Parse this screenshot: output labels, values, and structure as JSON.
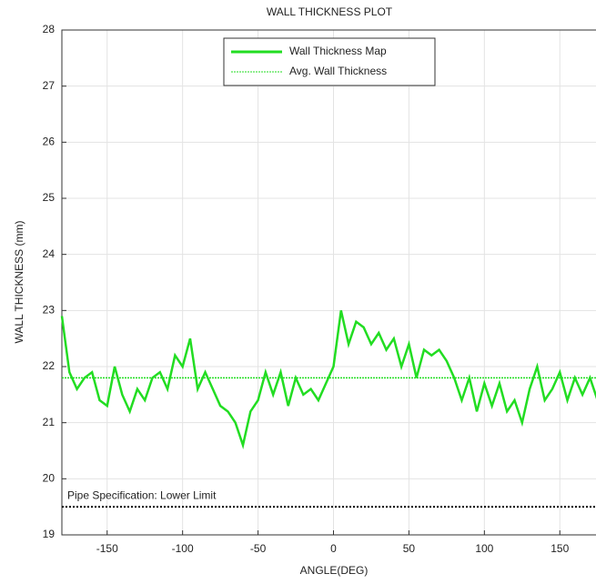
{
  "chart_data": {
    "type": "line",
    "title": "WALL THICKNESS PLOT",
    "xlabel": "ANGLE(DEG)",
    "ylabel": "WALL THICKNESS (mm)",
    "x": [
      -180,
      -175,
      -170,
      -165,
      -160,
      -155,
      -150,
      -145,
      -140,
      -135,
      -130,
      -125,
      -120,
      -115,
      -110,
      -105,
      -100,
      -95,
      -90,
      -85,
      -80,
      -75,
      -70,
      -65,
      -60,
      -55,
      -50,
      -45,
      -40,
      -35,
      -30,
      -25,
      -20,
      -15,
      -10,
      -5,
      0,
      5,
      10,
      15,
      20,
      25,
      30,
      35,
      40,
      45,
      50,
      55,
      60,
      65,
      70,
      75,
      80,
      85,
      90,
      95,
      100,
      105,
      110,
      115,
      120,
      125,
      130,
      135,
      140,
      145,
      150,
      155,
      160,
      165,
      170,
      175,
      180
    ],
    "series": [
      {
        "name": "Wall Thickness Map",
        "color": "#22dd22",
        "values": [
          22.9,
          21.9,
          21.6,
          21.8,
          21.9,
          21.4,
          21.3,
          22.0,
          21.5,
          21.2,
          21.6,
          21.4,
          21.8,
          21.9,
          21.6,
          22.2,
          22.0,
          22.5,
          21.6,
          21.9,
          21.6,
          21.3,
          21.2,
          21.0,
          20.6,
          21.2,
          21.4,
          21.9,
          21.5,
          21.9,
          21.3,
          21.8,
          21.5,
          21.6,
          21.4,
          21.7,
          22.0,
          23.0,
          22.4,
          22.8,
          22.7,
          22.4,
          22.6,
          22.3,
          22.5,
          22.0,
          22.4,
          21.8,
          22.3,
          22.2,
          22.3,
          22.1,
          21.8,
          21.4,
          21.8,
          21.2,
          21.7,
          21.3,
          21.7,
          21.2,
          21.4,
          21.0,
          21.6,
          22.0,
          21.4,
          21.6,
          21.9,
          21.4,
          21.8,
          21.5,
          21.8,
          21.4,
          21.6
        ]
      }
    ],
    "avg_line": {
      "name": "Avg. Wall Thickness",
      "value": 21.8,
      "color": "#22dd22"
    },
    "limit_line": {
      "label": "Pipe Specification: Lower Limit",
      "value": 19.5,
      "color": "#000000"
    },
    "xlim": [
      -180,
      180
    ],
    "xticks": [
      -150,
      -100,
      -50,
      0,
      50,
      100,
      150
    ],
    "ylim": [
      19,
      28
    ],
    "yticks": [
      19,
      20,
      21,
      22,
      23,
      24,
      25,
      26,
      27,
      28
    ],
    "grid": true,
    "legend": "top"
  }
}
